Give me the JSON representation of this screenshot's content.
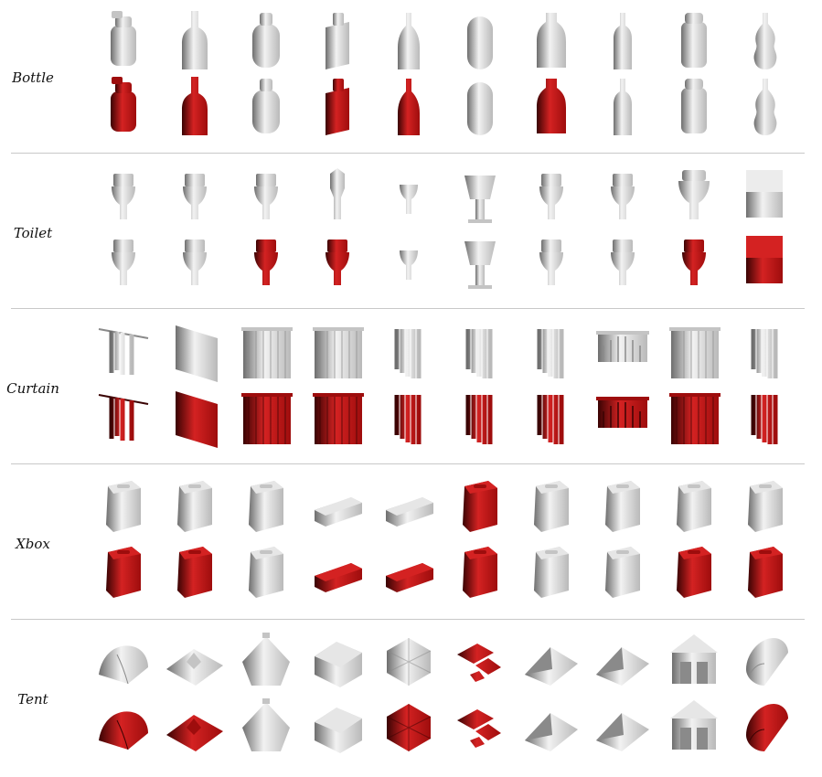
{
  "colors": {
    "plain": "#b9b9b9",
    "plain_light": "#f2f2f2",
    "plain_dark": "#6e6e6e",
    "red": "#9e0d0d",
    "red_light": "#d42222",
    "red_dark": "#3a0303"
  },
  "categories": [
    {
      "label": "Bottle",
      "rows": [
        [
          "pump-bottle",
          "wine-bottle",
          "round-bottle",
          "flask-bottle",
          "tall-bottle",
          "capsule-bottle",
          "jug-bottle",
          "slim-bottle",
          "jar-bottle",
          "curvy-bottle"
        ],
        [
          "pump-bottle-red",
          "wine-bottle-red",
          "round-bottle",
          "flask-bottle-red",
          "tall-bottle-red",
          "capsule-bottle",
          "jug-bottle-red",
          "slim-bottle",
          "jar-bottle",
          "curvy-bottle"
        ]
      ]
    },
    {
      "label": "Toilet",
      "rows": [
        [
          "toilet",
          "toilet",
          "toilet",
          "toilet-thin",
          "toilet-small",
          "toilet-wide",
          "toilet",
          "toilet",
          "toilet-big",
          "toilet-box"
        ],
        [
          "toilet",
          "toilet",
          "toilet-red",
          "toilet-red",
          "toilet-small",
          "toilet-wide",
          "toilet",
          "toilet",
          "toilet-red",
          "toilet-box-red"
        ]
      ]
    },
    {
      "label": "Curtain",
      "rows": [
        [
          "curtain-hang",
          "panel",
          "curtain-wave",
          "curtain-wave",
          "curtain-fold",
          "curtain-fold",
          "curtain-fold",
          "curtain-arch",
          "curtain-wave",
          "curtain-fold"
        ],
        [
          "curtain-hang-red",
          "panel-red",
          "curtain-wave-red",
          "curtain-wave-red",
          "curtain-fold-red",
          "curtain-fold-red",
          "curtain-fold-red",
          "curtain-arch-red",
          "curtain-wave-red",
          "curtain-fold-red"
        ]
      ]
    },
    {
      "label": "Xbox",
      "rows": [
        [
          "console",
          "console",
          "console",
          "console-flat",
          "console-flat",
          "console-red",
          "console",
          "console",
          "console",
          "console"
        ],
        [
          "console-red",
          "console-red",
          "console",
          "console-flat-red",
          "console-flat-red",
          "console-red",
          "console",
          "console",
          "console-red",
          "console-red"
        ]
      ]
    },
    {
      "label": "Tent",
      "rows": [
        [
          "tent-dome",
          "tent-flat",
          "tent-pyramid",
          "tent-house",
          "tent-octa",
          "tent-scatter-red",
          "tent-ridge",
          "tent-ridge",
          "tent-hut",
          "tent-tunnel"
        ],
        [
          "tent-dome-red",
          "tent-flat-red",
          "tent-pyramid",
          "tent-house",
          "tent-octa-red",
          "tent-scatter-red",
          "tent-ridge",
          "tent-ridge",
          "tent-hut",
          "tent-tunnel-red"
        ]
      ]
    }
  ]
}
